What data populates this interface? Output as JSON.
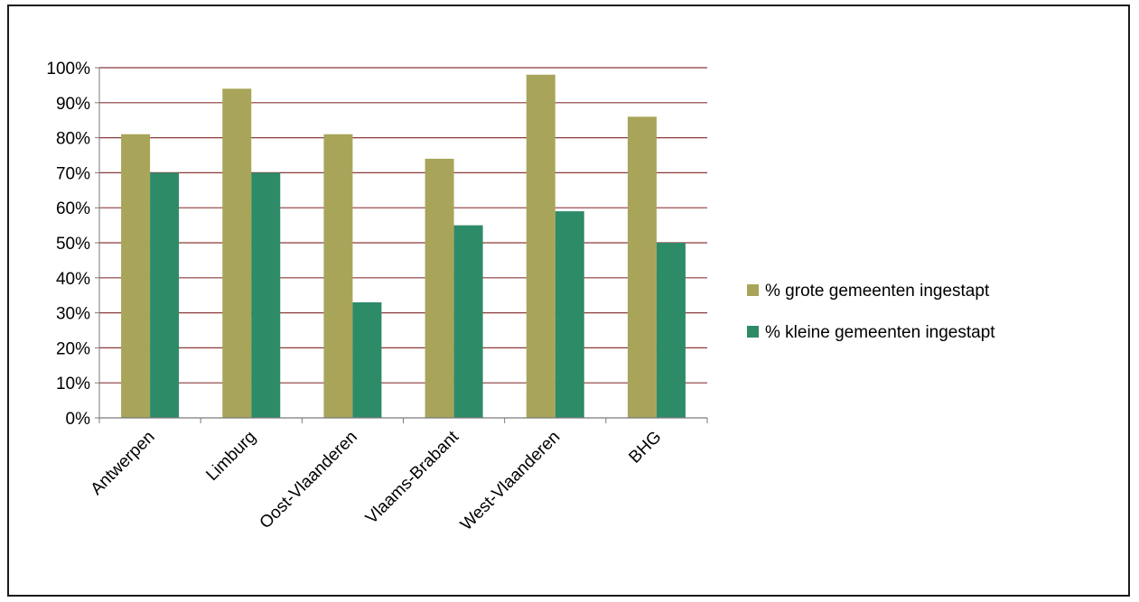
{
  "chart_data": {
    "type": "bar",
    "categories": [
      "Antwerpen",
      "Limburg",
      "Oost-Vlaanderen",
      "Vlaams-Brabant",
      "West-Vlaanderen",
      "BHG"
    ],
    "series": [
      {
        "name": "% grote gemeenten ingestapt",
        "values": [
          81,
          94,
          81,
          74,
          98,
          86
        ],
        "color": "#a8a55a"
      },
      {
        "name": "% kleine gemeenten ingestapt",
        "values": [
          70,
          70,
          33,
          55,
          59,
          50
        ],
        "color": "#2e8b68"
      }
    ],
    "ylim": [
      0,
      100
    ],
    "yticks": [
      "0%",
      "10%",
      "20%",
      "30%",
      "40%",
      "50%",
      "60%",
      "70%",
      "80%",
      "90%",
      "100%"
    ],
    "grid": true,
    "gridline_color": "#8b3a3a",
    "legend_position": "right"
  }
}
